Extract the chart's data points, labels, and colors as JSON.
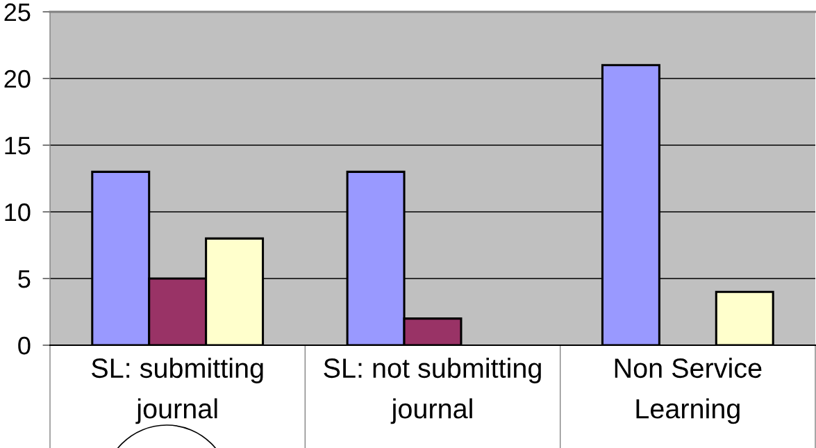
{
  "chart_data": {
    "type": "bar",
    "categories": [
      "SL: submitting journal",
      "SL: not submitting journal",
      "Non Service Learning"
    ],
    "series": [
      {
        "color": "#9999ff",
        "values": [
          13,
          13,
          21
        ]
      },
      {
        "color": "#993366",
        "values": [
          5,
          2,
          null
        ]
      },
      {
        "color": "#ffffcc",
        "values": [
          8,
          null,
          4
        ]
      }
    ],
    "ylim": [
      0,
      25
    ],
    "yticks": [
      0,
      5,
      10,
      15,
      20,
      25
    ],
    "grid": "y"
  }
}
